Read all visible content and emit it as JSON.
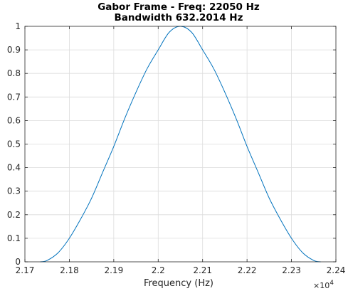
{
  "chart_data": {
    "type": "line",
    "title": [
      "Gabor Frame - Freq: 22050 Hz",
      "Bandwidth 632.2014 Hz"
    ],
    "xlabel": "Frequency (Hz)",
    "ylabel": "",
    "x_exponent_label": "×10",
    "x_exponent_power": "4",
    "xlim": [
      21700,
      22400
    ],
    "ylim": [
      0,
      1
    ],
    "x_ticks": [
      21700,
      21800,
      21900,
      22000,
      22100,
      22200,
      22300,
      22400
    ],
    "x_tick_labels": [
      "2.17",
      "2.18",
      "2.19",
      "2.2",
      "2.21",
      "2.22",
      "2.23",
      "2.24"
    ],
    "y_ticks": [
      0,
      0.1,
      0.2,
      0.3,
      0.4,
      0.5,
      0.6,
      0.7,
      0.8,
      0.9,
      1
    ],
    "y_tick_labels": [
      "0",
      "0.1",
      "0.2",
      "0.3",
      "0.4",
      "0.5",
      "0.6",
      "0.7",
      "0.8",
      "0.9",
      "1"
    ],
    "grid": true,
    "series": [
      {
        "color": "#0072BD",
        "x": [
          21734,
          21750,
          21775,
          21800,
          21825,
          21850,
          21875,
          21900,
          21925,
          21950,
          21975,
          22000,
          22025,
          22050,
          22075,
          22100,
          22125,
          22150,
          22175,
          22200,
          22225,
          22250,
          22275,
          22300,
          22325,
          22350,
          22366
        ],
        "y": [
          0.0,
          0.006,
          0.039,
          0.1,
          0.18,
          0.27,
          0.38,
          0.49,
          0.61,
          0.72,
          0.82,
          0.9,
          0.975,
          1.0,
          0.975,
          0.9,
          0.82,
          0.72,
          0.61,
          0.49,
          0.38,
          0.27,
          0.18,
          0.1,
          0.039,
          0.006,
          0.0
        ]
      }
    ]
  }
}
